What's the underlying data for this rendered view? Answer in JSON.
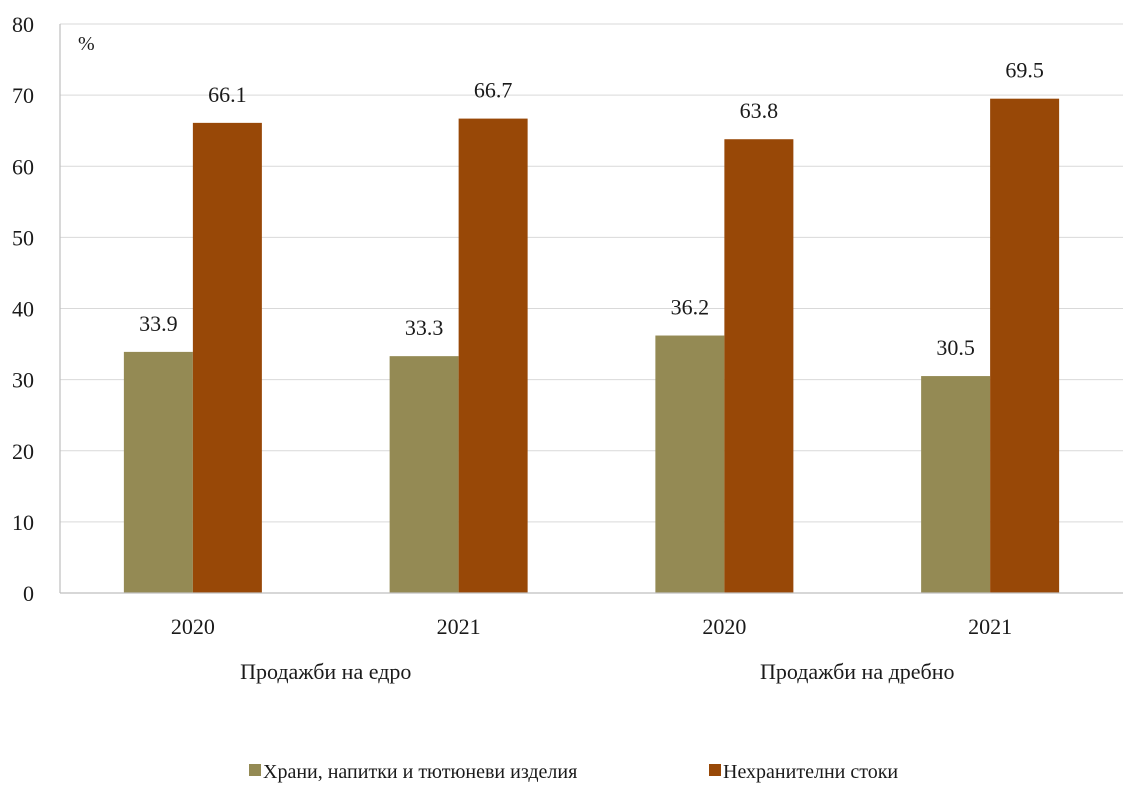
{
  "chart_data": {
    "type": "bar",
    "unit_label": "%",
    "ylim": [
      0,
      80
    ],
    "yticks": [
      0,
      10,
      20,
      30,
      40,
      50,
      60,
      70,
      80
    ],
    "grid": true,
    "legend_position": "bottom",
    "groups": [
      {
        "label": "Продажби на едро",
        "categories": [
          "2020",
          "2021"
        ]
      },
      {
        "label": "Продажби на дребно",
        "categories": [
          "2020",
          "2021"
        ]
      }
    ],
    "categories": [
      "2020",
      "2021",
      "2020",
      "2021"
    ],
    "series": [
      {
        "name": "Храни, напитки и тютюневи изделия",
        "color": "#948a54",
        "values": [
          33.9,
          33.3,
          36.2,
          30.5
        ]
      },
      {
        "name": "Нехранителни стоки",
        "color": "#984807",
        "values": [
          66.1,
          66.7,
          63.8,
          69.5
        ]
      }
    ]
  }
}
